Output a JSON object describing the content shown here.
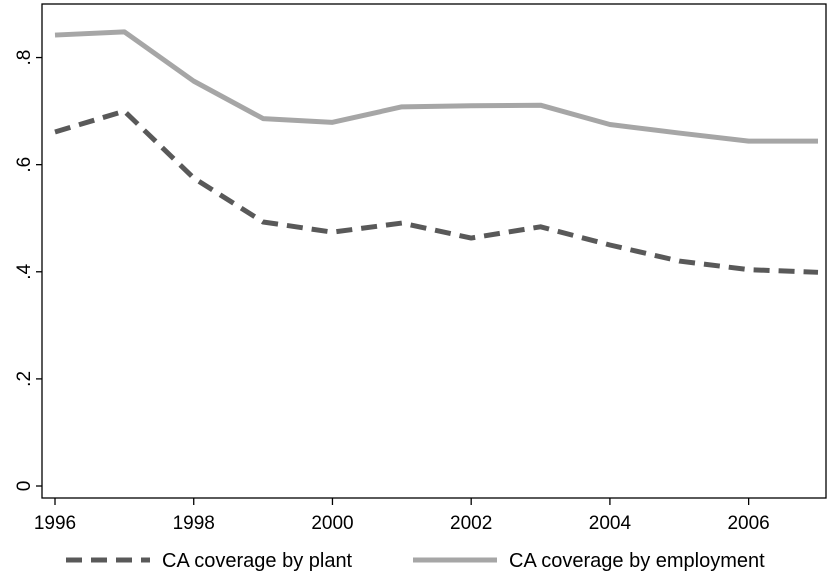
{
  "chart_data": {
    "type": "line",
    "title": "",
    "xlabel": "",
    "ylabel": "",
    "x": [
      1996,
      1997,
      1998,
      1999,
      2000,
      2001,
      2002,
      2003,
      2004,
      2005,
      2006,
      2007
    ],
    "xlim": [
      1996,
      2007
    ],
    "ylim": [
      0,
      0.9
    ],
    "x_ticks": [
      1996,
      1998,
      2000,
      2002,
      2004,
      2006
    ],
    "x_tick_labels": [
      "1996",
      "1998",
      "2000",
      "2002",
      "2004",
      "2006"
    ],
    "y_ticks": [
      0,
      0.2,
      0.4,
      0.6,
      0.8
    ],
    "y_tick_labels": [
      "0",
      ".2",
      ".4",
      ".6",
      ".8"
    ],
    "y_tick_labels_rotated": true,
    "grid": false,
    "legend_position": "bottom",
    "series": [
      {
        "name": "CA coverage by plant",
        "style": "dashed",
        "color": "#595959",
        "values": [
          0.661,
          0.7,
          0.575,
          0.493,
          0.474,
          0.491,
          0.463,
          0.484,
          0.45,
          0.42,
          0.404,
          0.399
        ]
      },
      {
        "name": "CA coverage by employment",
        "style": "solid",
        "color": "#a6a6a6",
        "values": [
          0.842,
          0.848,
          0.756,
          0.686,
          0.679,
          0.708,
          0.71,
          0.711,
          0.675,
          0.659,
          0.644,
          0.644
        ]
      }
    ]
  }
}
